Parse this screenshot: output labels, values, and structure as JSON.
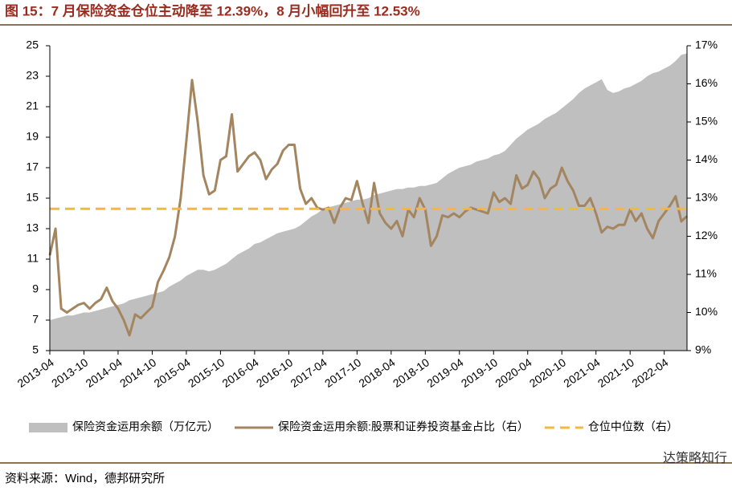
{
  "chart_data": {
    "type": "area-line",
    "title": "图 15：7 月保险资金仓位主动降至 12.39%，8 月小幅回升至 12.53%",
    "source": "资料来源：Wind，德邦研究所",
    "watermark": "达策略知行",
    "categories": [
      "2013-04",
      null,
      null,
      null,
      null,
      null,
      "2013-10",
      null,
      null,
      null,
      null,
      null,
      "2014-04",
      null,
      null,
      null,
      null,
      null,
      "2014-10",
      null,
      null,
      null,
      null,
      null,
      "2015-04",
      null,
      null,
      null,
      null,
      null,
      "2015-10",
      null,
      null,
      null,
      null,
      null,
      "2016-04",
      null,
      null,
      null,
      null,
      null,
      "2016-10",
      null,
      null,
      null,
      null,
      null,
      "2017-04",
      null,
      null,
      null,
      null,
      null,
      "2017-10",
      null,
      null,
      null,
      null,
      null,
      "2018-04",
      null,
      null,
      null,
      null,
      null,
      "2018-10",
      null,
      null,
      null,
      null,
      null,
      "2019-04",
      null,
      null,
      null,
      null,
      null,
      "2019-10",
      null,
      null,
      null,
      null,
      null,
      "2020-04",
      null,
      null,
      null,
      null,
      null,
      "2020-10",
      null,
      null,
      null,
      null,
      null,
      "2021-04",
      null,
      null,
      null,
      null,
      null,
      "2021-10",
      null,
      null,
      null,
      null,
      null,
      "2022-04",
      null,
      null,
      null,
      null
    ],
    "ylim": [
      5,
      25
    ],
    "yticks": [
      5,
      7,
      9,
      11,
      13,
      15,
      17,
      19,
      21,
      23,
      25
    ],
    "y2lim": [
      9,
      17
    ],
    "y2ticks": [
      {
        "value": 9,
        "label": "9%"
      },
      {
        "value": 10,
        "label": "10%"
      },
      {
        "value": 11,
        "label": "11%"
      },
      {
        "value": 12,
        "label": "12%"
      },
      {
        "value": 13,
        "label": "13%"
      },
      {
        "value": 14,
        "label": "14%"
      },
      {
        "value": 15,
        "label": "15%"
      },
      {
        "value": 16,
        "label": "16%"
      },
      {
        "value": 17,
        "label": "17%"
      }
    ],
    "legend": "bottom",
    "series": [
      {
        "name": "保险资金运用余额（万亿元）",
        "type": "area",
        "color": "#bfbfbf",
        "values": [
          7.0,
          7.1,
          7.2,
          7.3,
          7.3,
          7.4,
          7.5,
          7.5,
          7.6,
          7.7,
          7.8,
          7.9,
          8.0,
          8.1,
          8.3,
          8.4,
          8.5,
          8.6,
          8.7,
          8.8,
          8.9,
          9.2,
          9.4,
          9.6,
          9.9,
          10.1,
          10.3,
          10.3,
          10.2,
          10.3,
          10.5,
          10.7,
          11.0,
          11.3,
          11.5,
          11.7,
          12.0,
          12.1,
          12.3,
          12.5,
          12.7,
          12.8,
          12.9,
          13.0,
          13.2,
          13.5,
          13.8,
          14.0,
          14.3,
          14.4,
          14.5,
          14.6,
          14.7,
          14.8,
          14.9,
          14.9,
          15.0,
          15.2,
          15.3,
          15.4,
          15.5,
          15.6,
          15.6,
          15.7,
          15.7,
          15.8,
          15.8,
          15.9,
          16.0,
          16.3,
          16.6,
          16.8,
          17.0,
          17.1,
          17.2,
          17.4,
          17.5,
          17.6,
          17.8,
          17.9,
          18.1,
          18.5,
          18.9,
          19.2,
          19.5,
          19.7,
          19.9,
          20.2,
          20.4,
          20.6,
          20.9,
          21.2,
          21.5,
          21.9,
          22.2,
          22.4,
          22.6,
          22.8,
          22.1,
          21.9,
          22.0,
          22.2,
          22.3,
          22.5,
          22.7,
          23.0,
          23.2,
          23.3,
          23.5,
          23.7,
          24.0,
          24.4,
          24.5
        ]
      },
      {
        "name": "保险资金运用余额:股票和证券投资基金占比（右）",
        "type": "line",
        "axis": "y2",
        "color": "#a3855f",
        "values": [
          11.5,
          12.2,
          10.1,
          10.0,
          10.1,
          10.2,
          10.25,
          10.1,
          10.25,
          10.35,
          10.65,
          10.3,
          10.1,
          9.8,
          9.4,
          9.95,
          9.85,
          10.0,
          10.15,
          10.8,
          11.1,
          11.45,
          12.0,
          13.0,
          14.5,
          16.1,
          15.0,
          13.6,
          13.1,
          13.2,
          14.0,
          14.1,
          15.2,
          13.7,
          13.9,
          14.1,
          14.2,
          14.0,
          13.5,
          13.75,
          13.9,
          14.25,
          14.4,
          14.4,
          13.25,
          12.85,
          13.0,
          12.75,
          12.7,
          12.75,
          12.35,
          12.75,
          13.0,
          12.95,
          13.45,
          12.85,
          12.35,
          13.4,
          12.6,
          12.35,
          12.2,
          12.4,
          12.0,
          12.7,
          12.5,
          13.0,
          12.7,
          11.75,
          12.0,
          12.55,
          12.5,
          12.6,
          12.5,
          12.65,
          12.75,
          12.7,
          12.65,
          12.6,
          13.15,
          12.9,
          13.0,
          12.85,
          13.6,
          13.25,
          13.35,
          13.7,
          13.5,
          13.0,
          13.25,
          13.35,
          13.8,
          13.45,
          13.2,
          12.8,
          12.8,
          13.0,
          12.6,
          12.1,
          12.25,
          12.2,
          12.3,
          12.3,
          12.7,
          12.4,
          12.6,
          12.2,
          11.95,
          12.4,
          12.6,
          12.8,
          13.05,
          12.39,
          12.53
        ]
      },
      {
        "name": "仓位中位数（右）",
        "type": "hline",
        "axis": "y2",
        "color": "#f2b941",
        "dashed": true,
        "value": 12.72
      }
    ]
  }
}
